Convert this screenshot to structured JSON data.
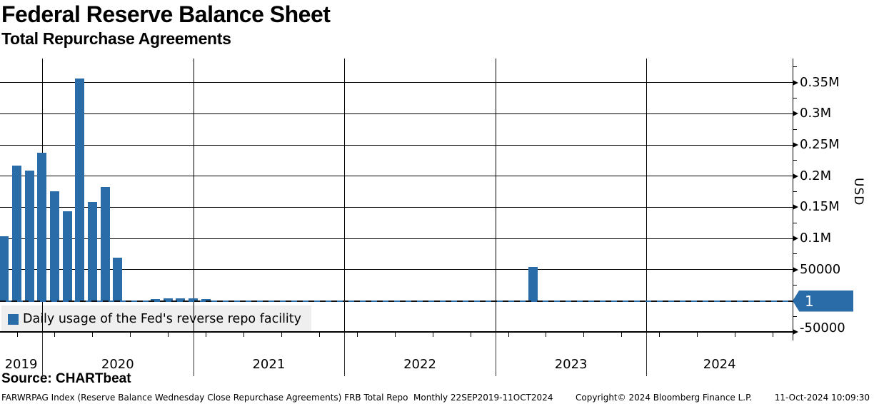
{
  "header": {
    "title": "Federal Reserve Balance Sheet",
    "subtitle": "Total Repurchase Agreements"
  },
  "legend": {
    "label": "Daily usage of the Fed's reverse repo facility"
  },
  "axis": {
    "unit_label": "USD",
    "years": [
      "2019",
      "2020",
      "2021",
      "2022",
      "2023",
      "2024"
    ],
    "y_major": [
      {
        "value": 350000,
        "label": "0.35M"
      },
      {
        "value": 300000,
        "label": "0.3M"
      },
      {
        "value": 250000,
        "label": "0.25M"
      },
      {
        "value": 200000,
        "label": "0.2M"
      },
      {
        "value": 150000,
        "label": "0.15M"
      },
      {
        "value": 100000,
        "label": "0.1M"
      },
      {
        "value": 50000,
        "label": "50000"
      },
      {
        "value": -50000,
        "label": "-50000"
      }
    ],
    "y_minor": [
      375000,
      325000,
      275000,
      225000,
      175000,
      125000,
      75000,
      25000,
      -25000
    ],
    "last_value_label": "1"
  },
  "footer": {
    "source": "Source: CHARTbeat",
    "descriptor": "FARWRPAG Index (Reserve Balance Wednesday Close Repurchase Agreements) FRB Total Repo  Monthly 22SEP2019-11OCT2024",
    "copyright": "Copyright© 2024 Bloomberg Finance L.P.",
    "timestamp": "11-Oct-2024 10:09:30"
  },
  "colors": {
    "bar": "#2a6ca8",
    "flag": "#2a6ca8",
    "zero_line_blue": "#2a6ca8",
    "grid": "#000000",
    "legend_bg": "#efefef"
  },
  "chart_data": {
    "type": "bar",
    "title": "Federal Reserve Balance Sheet",
    "subtitle": "Total Repurchase Agreements",
    "ylabel": "USD",
    "y_axis_side": "right",
    "ylim": [
      -54000,
      388000
    ],
    "grid": true,
    "legend_position": "bottom-left",
    "frequency": "Monthly",
    "period": "22SEP2019-11OCT2024",
    "last_value": 1,
    "x": [
      "Sep-2019",
      "Oct-2019",
      "Nov-2019",
      "Dec-2019",
      "Jan-2020",
      "Feb-2020",
      "Mar-2020",
      "Apr-2020",
      "May-2020",
      "Jun-2020",
      "Jul-2020",
      "Aug-2020",
      "Sep-2020",
      "Oct-2020",
      "Nov-2020",
      "Dec-2020",
      "Jan-2021",
      "Feb-2021",
      "Mar-2021",
      "Apr-2021",
      "May-2021",
      "Jun-2021",
      "Jul-2021",
      "Aug-2021",
      "Sep-2021",
      "Oct-2021",
      "Nov-2021",
      "Dec-2021",
      "Jan-2022",
      "Feb-2022",
      "Mar-2022",
      "Apr-2022",
      "May-2022",
      "Jun-2022",
      "Jul-2022",
      "Aug-2022",
      "Sep-2022",
      "Oct-2022",
      "Nov-2022",
      "Dec-2022",
      "Jan-2023",
      "Feb-2023",
      "Mar-2023",
      "Apr-2023",
      "May-2023",
      "Jun-2023",
      "Jul-2023",
      "Aug-2023",
      "Sep-2023",
      "Oct-2023",
      "Nov-2023",
      "Dec-2023",
      "Jan-2024",
      "Feb-2024",
      "Mar-2024",
      "Apr-2024",
      "May-2024",
      "Jun-2024",
      "Jul-2024",
      "Aug-2024",
      "Sep-2024",
      "Oct-2024"
    ],
    "values": [
      103000,
      217000,
      209000,
      237000,
      176000,
      144000,
      356000,
      159000,
      183000,
      69000,
      500,
      1000,
      3000,
      3500,
      3500,
      4000,
      2500,
      0,
      0,
      0,
      0,
      0,
      0,
      0,
      0,
      0,
      0,
      0,
      0,
      0,
      0,
      0,
      0,
      0,
      0,
      0,
      0,
      0,
      0,
      0,
      0,
      0,
      54000,
      0,
      0,
      0,
      0,
      0,
      0,
      0,
      0,
      0,
      0,
      0,
      0,
      0,
      0,
      0,
      0,
      0,
      0,
      1
    ]
  }
}
